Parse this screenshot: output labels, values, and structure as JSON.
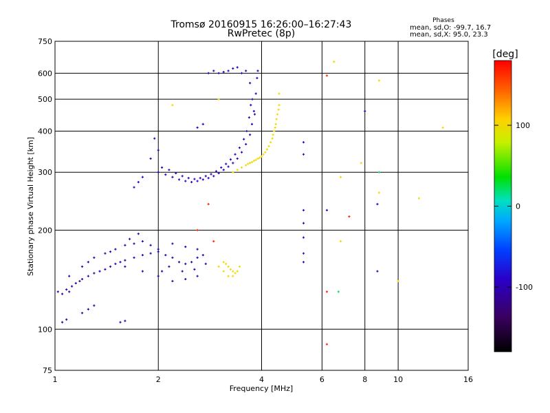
{
  "chart_data": {
    "type": "scatter",
    "title": "Tromsø 20160915 16:26:00–16:27:43",
    "subtitle": "RwPretec (8p)",
    "xlabel": "Frequency [MHz]",
    "ylabel": "Stationary phase Virtual Height [km]",
    "x_scale": "log",
    "y_scale": "log",
    "xlim": [
      1,
      16
    ],
    "ylim": [
      75,
      750
    ],
    "x_ticks": [
      1,
      2,
      4,
      6,
      8,
      10,
      16
    ],
    "x_tick_labels": [
      "1",
      "2",
      "4",
      "6",
      "8",
      "10",
      "16"
    ],
    "y_ticks": [
      75,
      100,
      200,
      300,
      400,
      500,
      600,
      750
    ],
    "y_tick_labels": [
      "75",
      "100",
      "200",
      "300",
      "400",
      "500",
      "600",
      "750"
    ],
    "grid": true,
    "stats": {
      "heading": "Phases",
      "line_o": "mean, sd,O: -99.7, 16.7",
      "line_x": "mean, sd,X:  95.0, 23.3"
    },
    "colorbar": {
      "label": "[deg]",
      "range": [
        -180,
        180
      ],
      "ticks": [
        100,
        0,
        -100
      ],
      "tick_labels": [
        "100",
        "0",
        "-100"
      ]
    },
    "series": [
      {
        "name": "",
        "color_value": -105,
        "points": [
          [
            1.02,
            130
          ],
          [
            1.05,
            128
          ],
          [
            1.08,
            132
          ],
          [
            1.1,
            130
          ],
          [
            1.12,
            135
          ],
          [
            1.15,
            138
          ],
          [
            1.18,
            140
          ],
          [
            1.2,
            142
          ],
          [
            1.25,
            145
          ],
          [
            1.3,
            148
          ],
          [
            1.35,
            150
          ],
          [
            1.4,
            152
          ],
          [
            1.45,
            155
          ],
          [
            1.5,
            158
          ],
          [
            1.55,
            160
          ],
          [
            1.6,
            162
          ],
          [
            1.7,
            165
          ],
          [
            1.8,
            168
          ],
          [
            1.9,
            170
          ],
          [
            2.0,
            172
          ],
          [
            2.1,
            168
          ],
          [
            2.2,
            165
          ],
          [
            2.3,
            160
          ],
          [
            2.4,
            158
          ],
          [
            2.5,
            160
          ],
          [
            2.6,
            165
          ],
          [
            2.7,
            168
          ],
          [
            2.2,
            140
          ],
          [
            2.4,
            142
          ],
          [
            2.6,
            145
          ],
          [
            2.0,
            145
          ],
          [
            1.8,
            150
          ],
          [
            1.6,
            155
          ],
          [
            1.5,
            175
          ],
          [
            1.6,
            180
          ],
          [
            1.7,
            182
          ],
          [
            1.8,
            185
          ],
          [
            1.9,
            180
          ],
          [
            2.0,
            175
          ],
          [
            2.2,
            182
          ],
          [
            2.4,
            178
          ],
          [
            2.6,
            175
          ],
          [
            1.3,
            165
          ],
          [
            1.4,
            170
          ],
          [
            1.2,
            155
          ],
          [
            1.1,
            145
          ],
          [
            1.25,
            160
          ],
          [
            1.45,
            172
          ],
          [
            1.65,
            188
          ],
          [
            1.75,
            195
          ],
          [
            2.05,
            150
          ],
          [
            2.15,
            155
          ],
          [
            2.35,
            150
          ],
          [
            2.55,
            152
          ],
          [
            2.75,
            158
          ],
          [
            1.05,
            105
          ],
          [
            1.08,
            107
          ],
          [
            1.2,
            112
          ],
          [
            1.25,
            115
          ],
          [
            1.3,
            118
          ],
          [
            1.55,
            105
          ],
          [
            1.6,
            106
          ]
        ]
      },
      {
        "name": "",
        "color_value": -95,
        "points": [
          [
            2.0,
            300
          ],
          [
            2.1,
            295
          ],
          [
            2.2,
            290
          ],
          [
            2.3,
            285
          ],
          [
            2.4,
            282
          ],
          [
            2.5,
            280
          ],
          [
            2.6,
            282
          ],
          [
            2.7,
            285
          ],
          [
            2.8,
            288
          ],
          [
            2.9,
            292
          ],
          [
            3.0,
            298
          ],
          [
            3.1,
            305
          ],
          [
            3.2,
            312
          ],
          [
            3.3,
            320
          ],
          [
            3.4,
            330
          ],
          [
            3.5,
            345
          ],
          [
            3.6,
            365
          ],
          [
            3.7,
            390
          ],
          [
            3.75,
            420
          ],
          [
            3.8,
            460
          ],
          [
            3.85,
            520
          ],
          [
            3.88,
            580
          ],
          [
            3.9,
            610
          ],
          [
            2.05,
            310
          ],
          [
            2.15,
            305
          ],
          [
            2.25,
            298
          ],
          [
            2.35,
            292
          ],
          [
            2.45,
            288
          ],
          [
            2.55,
            286
          ],
          [
            2.65,
            288
          ],
          [
            2.75,
            292
          ],
          [
            2.85,
            296
          ],
          [
            2.95,
            302
          ],
          [
            3.05,
            310
          ],
          [
            3.15,
            318
          ],
          [
            3.25,
            328
          ],
          [
            3.35,
            340
          ],
          [
            3.45,
            356
          ],
          [
            3.55,
            378
          ],
          [
            3.62,
            400
          ],
          [
            3.68,
            440
          ],
          [
            3.72,
            480
          ],
          [
            1.9,
            330
          ],
          [
            2.0,
            350
          ],
          [
            1.95,
            380
          ],
          [
            2.6,
            410
          ],
          [
            2.7,
            420
          ],
          [
            1.7,
            270
          ],
          [
            1.75,
            280
          ],
          [
            1.8,
            290
          ],
          [
            2.8,
            600
          ],
          [
            2.9,
            610
          ],
          [
            3.0,
            600
          ],
          [
            3.1,
            605
          ],
          [
            3.2,
            610
          ],
          [
            3.3,
            620
          ],
          [
            3.4,
            625
          ],
          [
            3.5,
            600
          ],
          [
            3.6,
            610
          ],
          [
            3.7,
            560
          ],
          [
            3.76,
            500
          ],
          [
            3.82,
            450
          ],
          [
            5.3,
            370
          ],
          [
            5.3,
            340
          ],
          [
            5.3,
            230
          ],
          [
            5.3,
            210
          ],
          [
            5.3,
            190
          ],
          [
            5.3,
            170
          ],
          [
            5.3,
            160
          ],
          [
            6.2,
            230
          ],
          [
            8.0,
            460
          ],
          [
            8.7,
            240
          ],
          [
            8.7,
            150
          ]
        ]
      },
      {
        "name": "",
        "color_value": 100,
        "points": [
          [
            3.6,
            315
          ],
          [
            3.7,
            320
          ],
          [
            3.8,
            325
          ],
          [
            3.9,
            330
          ],
          [
            4.0,
            335
          ],
          [
            4.1,
            345
          ],
          [
            4.2,
            360
          ],
          [
            4.3,
            380
          ],
          [
            4.35,
            400
          ],
          [
            4.4,
            420
          ],
          [
            4.45,
            450
          ],
          [
            4.5,
            480
          ],
          [
            4.5,
            520
          ],
          [
            3.65,
            318
          ],
          [
            3.75,
            322
          ],
          [
            3.85,
            327
          ],
          [
            3.95,
            332
          ],
          [
            4.05,
            340
          ],
          [
            4.15,
            352
          ],
          [
            4.25,
            370
          ],
          [
            4.32,
            390
          ],
          [
            4.38,
            410
          ],
          [
            4.42,
            435
          ],
          [
            4.48,
            465
          ],
          [
            3.5,
            310
          ],
          [
            3.4,
            305
          ],
          [
            3.3,
            300
          ],
          [
            3.1,
            160
          ],
          [
            3.15,
            158
          ],
          [
            3.2,
            155
          ],
          [
            3.25,
            152
          ],
          [
            3.3,
            150
          ],
          [
            3.35,
            148
          ],
          [
            3.4,
            150
          ],
          [
            3.45,
            155
          ],
          [
            3.2,
            145
          ],
          [
            3.3,
            145
          ],
          [
            3.1,
            150
          ],
          [
            3.0,
            155
          ],
          [
            2.2,
            480
          ],
          [
            3.0,
            500
          ],
          [
            6.5,
            650
          ],
          [
            8.8,
            570
          ],
          [
            7.8,
            320
          ],
          [
            6.8,
            290
          ],
          [
            6.8,
            185
          ],
          [
            8.8,
            260
          ],
          [
            10.0,
            140
          ],
          [
            11.5,
            250
          ],
          [
            13.5,
            410
          ]
        ]
      },
      {
        "name": "",
        "color_value": 165,
        "points": [
          [
            6.2,
            590
          ],
          [
            7.2,
            220
          ],
          [
            6.2,
            130
          ],
          [
            6.2,
            90
          ],
          [
            2.9,
            185
          ],
          [
            2.8,
            240
          ],
          [
            2.6,
            200
          ]
        ]
      },
      {
        "name": "",
        "color_value": 20,
        "points": [
          [
            6.7,
            130
          ],
          [
            8.8,
            300
          ]
        ]
      }
    ]
  }
}
